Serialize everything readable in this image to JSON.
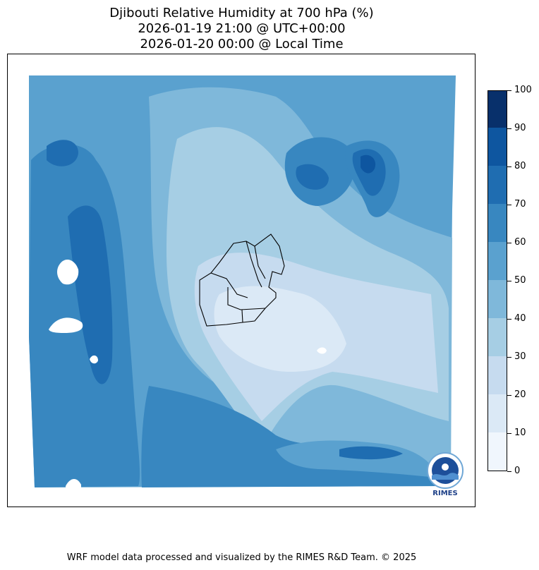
{
  "title": {
    "line1": "Djibouti Relative Humidity at 700 hPa (%)",
    "line2": "2026-01-19 21:00 @ UTC+00:00",
    "line3": "2026-01-20 00:00 @ Local Time"
  },
  "colorbar": {
    "levels": [
      0,
      10,
      20,
      30,
      40,
      50,
      60,
      70,
      80,
      90,
      100
    ],
    "tick_labels": [
      "0",
      "10",
      "20",
      "30",
      "40",
      "50",
      "60",
      "70",
      "80",
      "90",
      "100"
    ],
    "colors": [
      "#f0f6fd",
      "#dbe9f6",
      "#c6dbef",
      "#a6cee4",
      "#7fb8da",
      "#5aa1cf",
      "#3887c0",
      "#1f6db1",
      "#0e56a0",
      "#08306b"
    ]
  },
  "logo": {
    "text": "RIMES",
    "icon": "rimes-logo-icon"
  },
  "footer": "WRF model data processed and visualized by the RIMES R&D Team. © 2025"
}
